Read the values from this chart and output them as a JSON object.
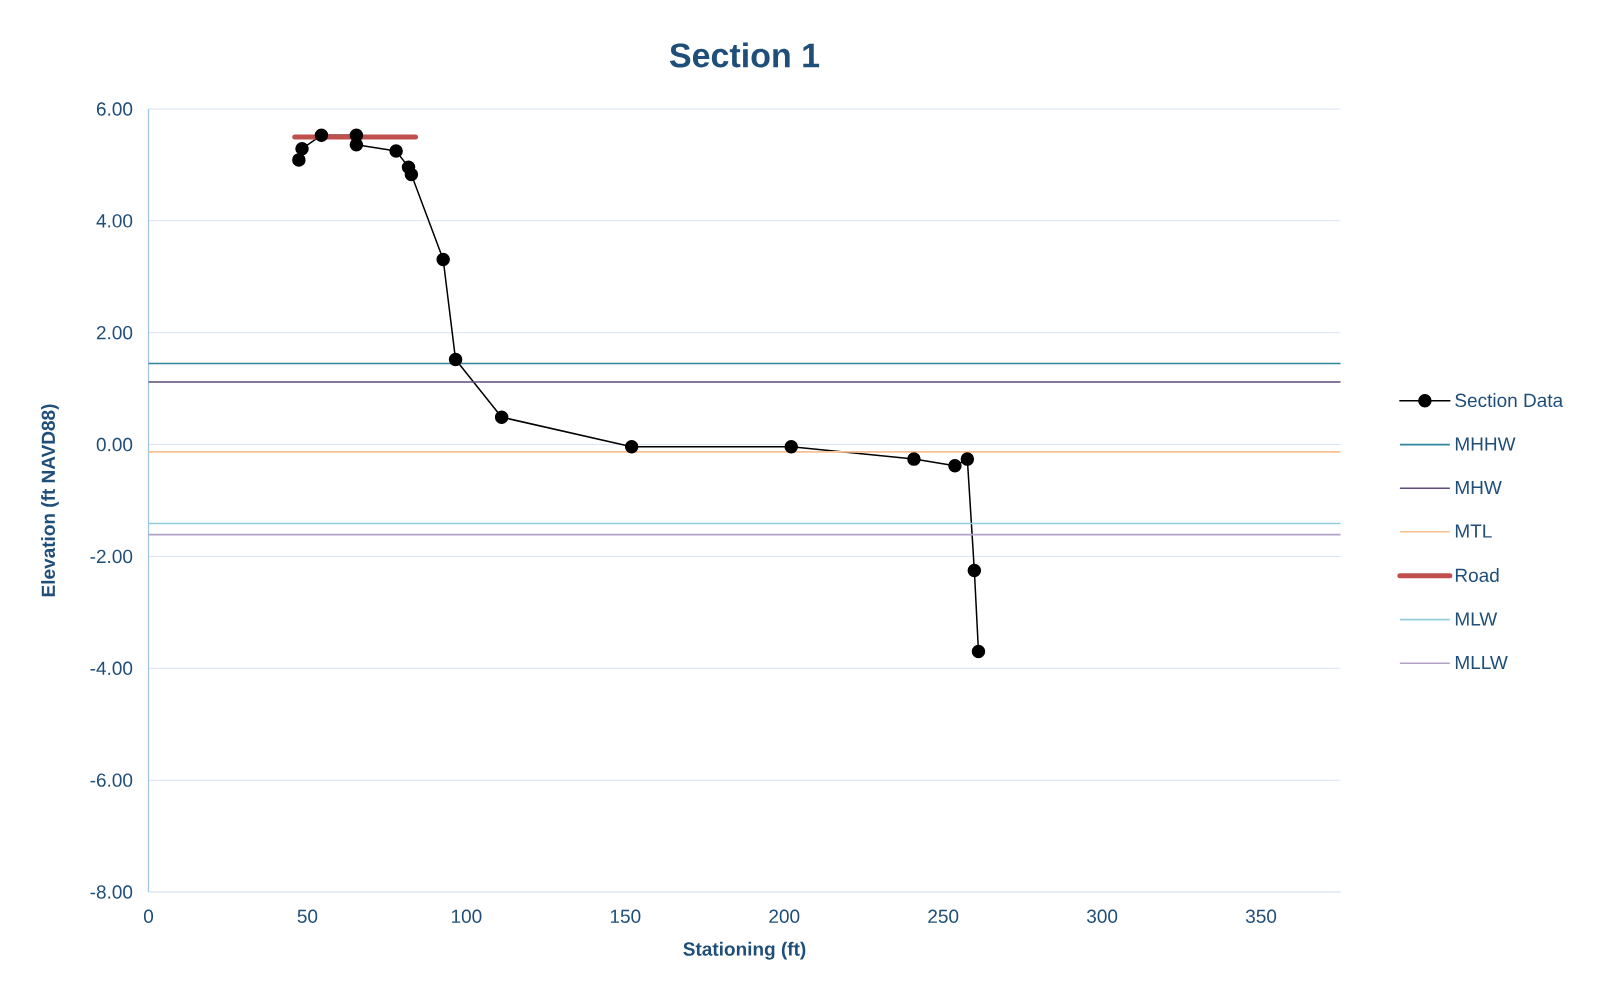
{
  "chart_data": {
    "type": "line",
    "title": "Section 1",
    "xlabel": "Stationing (ft)",
    "ylabel": "Elevation (ft NAVD88)",
    "xlim": [
      0,
      375
    ],
    "xticks": [
      0,
      50,
      100,
      150,
      200,
      250,
      300,
      350
    ],
    "ylim": [
      -8,
      6
    ],
    "yticks": [
      {
        "value": -8,
        "label": "-8.00"
      },
      {
        "value": -6,
        "label": "-6.00"
      },
      {
        "value": -4,
        "label": "-4.00"
      },
      {
        "value": -2,
        "label": "-2.00"
      },
      {
        "value": 0,
        "label": "0.00"
      },
      {
        "value": 2,
        "label": "2.00"
      },
      {
        "value": 4,
        "label": "4.00"
      },
      {
        "value": 6,
        "label": "6.00"
      }
    ],
    "grid": "y",
    "legend": "right",
    "series": [
      {
        "name": "Section Data",
        "color": "#000000",
        "marker": "circle",
        "x": [
          47.3,
          48.3,
          54.4,
          65.4,
          65.4,
          77.9,
          81.8,
          82.7,
          92.7,
          96.6,
          111.1,
          152.0,
          202.2,
          240.8,
          253.7,
          257.6,
          259.8,
          261.1
        ],
        "values": [
          5.09,
          5.29,
          5.53,
          5.53,
          5.36,
          5.25,
          4.96,
          4.83,
          3.31,
          1.52,
          0.49,
          -0.04,
          -0.04,
          -0.26,
          -0.38,
          -0.26,
          -2.25,
          -3.7
        ]
      },
      {
        "name": "MHHW",
        "color": "#31859c",
        "x": [
          0,
          375
        ],
        "values": [
          1.45,
          1.45
        ]
      },
      {
        "name": "MHW",
        "color": "#604a7b",
        "x": [
          0,
          375
        ],
        "values": [
          1.12,
          1.12
        ]
      },
      {
        "name": "MTL",
        "color": "#fac090",
        "x": [
          0,
          375
        ],
        "values": [
          -0.13,
          -0.13
        ]
      },
      {
        "name": "Road",
        "color": "#c0504d",
        "x": [
          46,
          84
        ],
        "values": [
          5.5,
          5.5
        ]
      },
      {
        "name": "MLW",
        "color": "#92cddc",
        "x": [
          0,
          375
        ],
        "values": [
          -1.41,
          -1.41
        ]
      },
      {
        "name": "MLLW",
        "color": "#b3a2c7",
        "x": [
          0,
          375
        ],
        "values": [
          -1.61,
          -1.61
        ]
      }
    ]
  }
}
